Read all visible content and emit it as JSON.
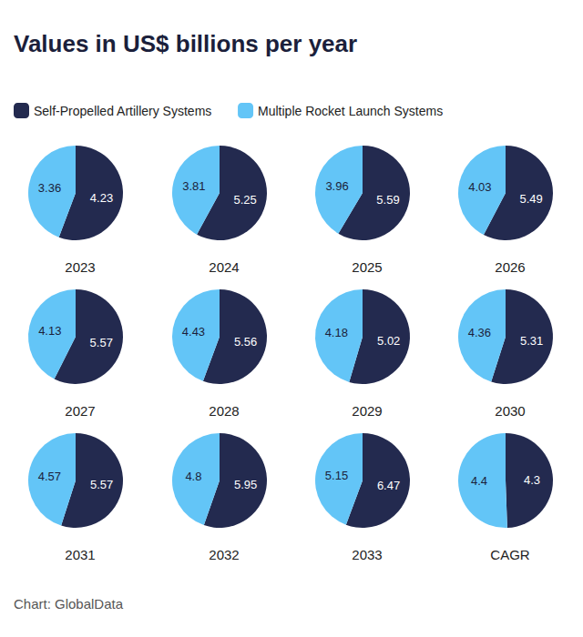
{
  "title": "Values in US$ billions per year",
  "source": "Chart: GlobalData",
  "chart_data": [
    {
      "type": "pie",
      "title": "2023",
      "categories": [
        "Self-Propelled Artillery Systems",
        "Multiple Rocket Launch Systems"
      ],
      "values": [
        4.23,
        3.36
      ],
      "colors": [
        "#232a4f",
        "#63c5f7"
      ],
      "data_labels": true,
      "legend": "top"
    },
    {
      "type": "pie",
      "title": "2024",
      "categories": [
        "Self-Propelled Artillery Systems",
        "Multiple Rocket Launch Systems"
      ],
      "values": [
        5.25,
        3.81
      ],
      "colors": [
        "#232a4f",
        "#63c5f7"
      ],
      "data_labels": true,
      "legend": "top"
    },
    {
      "type": "pie",
      "title": "2025",
      "categories": [
        "Self-Propelled Artillery Systems",
        "Multiple Rocket Launch Systems"
      ],
      "values": [
        5.59,
        3.96
      ],
      "colors": [
        "#232a4f",
        "#63c5f7"
      ],
      "data_labels": true,
      "legend": "top"
    },
    {
      "type": "pie",
      "title": "2026",
      "categories": [
        "Self-Propelled Artillery Systems",
        "Multiple Rocket Launch Systems"
      ],
      "values": [
        5.49,
        4.03
      ],
      "colors": [
        "#232a4f",
        "#63c5f7"
      ],
      "data_labels": true,
      "legend": "top"
    },
    {
      "type": "pie",
      "title": "2027",
      "categories": [
        "Self-Propelled Artillery Systems",
        "Multiple Rocket Launch Systems"
      ],
      "values": [
        5.57,
        4.13
      ],
      "colors": [
        "#232a4f",
        "#63c5f7"
      ],
      "data_labels": true,
      "legend": "top"
    },
    {
      "type": "pie",
      "title": "2028",
      "categories": [
        "Self-Propelled Artillery Systems",
        "Multiple Rocket Launch Systems"
      ],
      "values": [
        5.56,
        4.43
      ],
      "colors": [
        "#232a4f",
        "#63c5f7"
      ],
      "data_labels": true,
      "legend": "top"
    },
    {
      "type": "pie",
      "title": "2029",
      "categories": [
        "Self-Propelled Artillery Systems",
        "Multiple Rocket Launch Systems"
      ],
      "values": [
        5.02,
        4.18
      ],
      "colors": [
        "#232a4f",
        "#63c5f7"
      ],
      "data_labels": true,
      "legend": "top"
    },
    {
      "type": "pie",
      "title": "2030",
      "categories": [
        "Self-Propelled Artillery Systems",
        "Multiple Rocket Launch Systems"
      ],
      "values": [
        5.31,
        4.36
      ],
      "colors": [
        "#232a4f",
        "#63c5f7"
      ],
      "data_labels": true,
      "legend": "top"
    },
    {
      "type": "pie",
      "title": "2031",
      "categories": [
        "Self-Propelled Artillery Systems",
        "Multiple Rocket Launch Systems"
      ],
      "values": [
        5.57,
        4.57
      ],
      "colors": [
        "#232a4f",
        "#63c5f7"
      ],
      "data_labels": true,
      "legend": "top"
    },
    {
      "type": "pie",
      "title": "2032",
      "categories": [
        "Self-Propelled Artillery Systems",
        "Multiple Rocket Launch Systems"
      ],
      "values": [
        5.95,
        4.8
      ],
      "colors": [
        "#232a4f",
        "#63c5f7"
      ],
      "data_labels": true,
      "legend": "top"
    },
    {
      "type": "pie",
      "title": "2033",
      "categories": [
        "Self-Propelled Artillery Systems",
        "Multiple Rocket Launch Systems"
      ],
      "values": [
        6.47,
        5.15
      ],
      "colors": [
        "#232a4f",
        "#63c5f7"
      ],
      "data_labels": true,
      "legend": "top"
    },
    {
      "type": "pie",
      "title": "CAGR",
      "categories": [
        "Self-Propelled Artillery Systems",
        "Multiple Rocket Launch Systems"
      ],
      "values": [
        4.3,
        4.4
      ],
      "colors": [
        "#232a4f",
        "#63c5f7"
      ],
      "data_labels": true,
      "legend": "top"
    }
  ]
}
